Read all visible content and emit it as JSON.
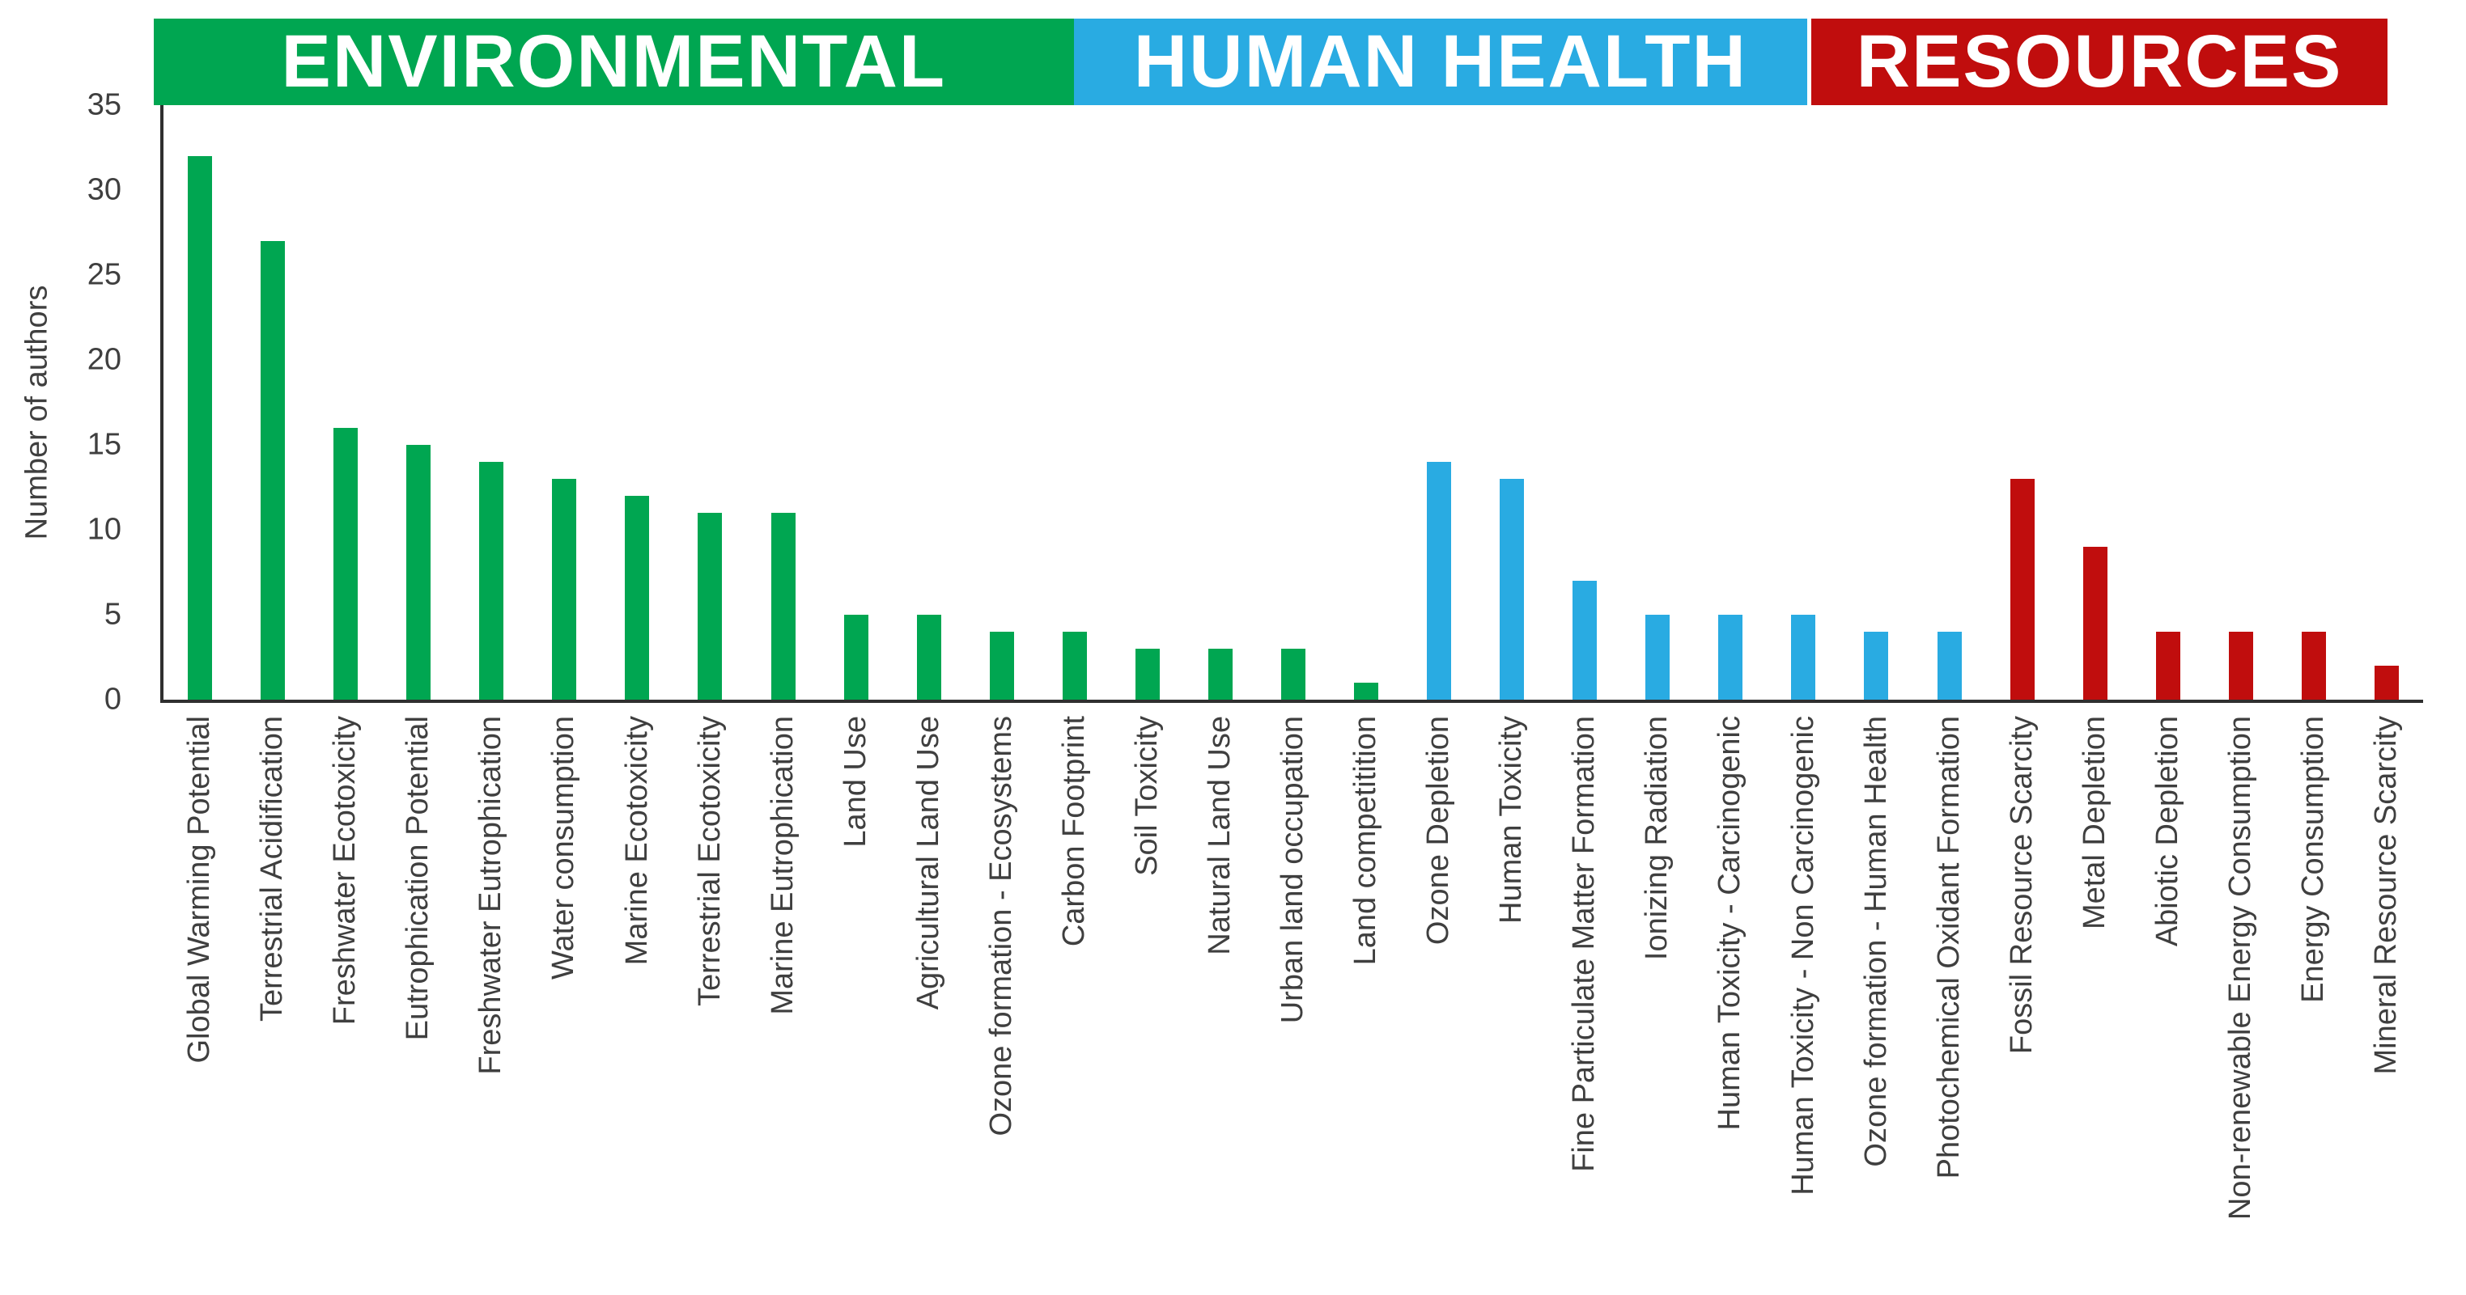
{
  "chart_data": {
    "type": "bar",
    "title": "",
    "xlabel": "",
    "ylabel": "Number of authors",
    "ylim": [
      0,
      35
    ],
    "yticks": [
      0,
      5,
      10,
      15,
      20,
      25,
      30,
      35
    ],
    "grid": false,
    "legend_position": "none",
    "axis_color": "#2f2f2f",
    "text_color": "#3f3f3f",
    "header_text_color": "#ffffff",
    "groups": [
      {
        "label": "ENVIRONMENTAL",
        "color": "#00a651",
        "bars": [
          {
            "category": "Global Warming Potential",
            "value": 32
          },
          {
            "category": "Terrestrial Acidification",
            "value": 27
          },
          {
            "category": "Freshwater Ecotoxicity",
            "value": 16
          },
          {
            "category": "Eutrophication Potential",
            "value": 15
          },
          {
            "category": "Freshwater Eutrophication",
            "value": 14
          },
          {
            "category": "Water consumption",
            "value": 13
          },
          {
            "category": "Marine Ecotoxicity",
            "value": 12
          },
          {
            "category": "Terrestrial Ecotoxicity",
            "value": 11
          },
          {
            "category": "Marine Eutrophication",
            "value": 11
          },
          {
            "category": "Land Use",
            "value": 5
          },
          {
            "category": "Agricultural Land Use",
            "value": 5
          },
          {
            "category": "Ozone formation - Ecosystems",
            "value": 4
          },
          {
            "category": "Carbon Footprint",
            "value": 4
          },
          {
            "category": "Soil Toxicity",
            "value": 3
          },
          {
            "category": "Natural Land Use",
            "value": 3
          },
          {
            "category": "Urban land occupation",
            "value": 3
          },
          {
            "category": "Land competitition",
            "value": 1
          }
        ]
      },
      {
        "label": "HUMAN HEALTH",
        "color": "#29abe2",
        "bars": [
          {
            "category": "Ozone Depletion",
            "value": 14
          },
          {
            "category": "Human Toxicity",
            "value": 13
          },
          {
            "category": "Fine Particulate Matter Formation",
            "value": 7
          },
          {
            "category": "Ionizing Radiation",
            "value": 5
          },
          {
            "category": "Human Toxicity - Carcinogenic",
            "value": 5
          },
          {
            "category": "Human Toxicity - Non Carcinogenic",
            "value": 5
          },
          {
            "category": "Ozone formation - Human Health",
            "value": 4
          },
          {
            "category": "Photochemical Oxidant Formation",
            "value": 4
          }
        ]
      },
      {
        "label": "RESOURCES",
        "color": "#c00d0d",
        "bars": [
          {
            "category": "Fossil Resource Scarcity",
            "value": 13
          },
          {
            "category": "Metal Depletion",
            "value": 9
          },
          {
            "category": "Abiotic Depletion",
            "value": 4
          },
          {
            "category": "Non-renewable Energy Consumption",
            "value": 4
          },
          {
            "category": "Energy Consumption",
            "value": 4
          },
          {
            "category": "Mineral Resource Scarcity",
            "value": 2
          }
        ]
      }
    ]
  }
}
